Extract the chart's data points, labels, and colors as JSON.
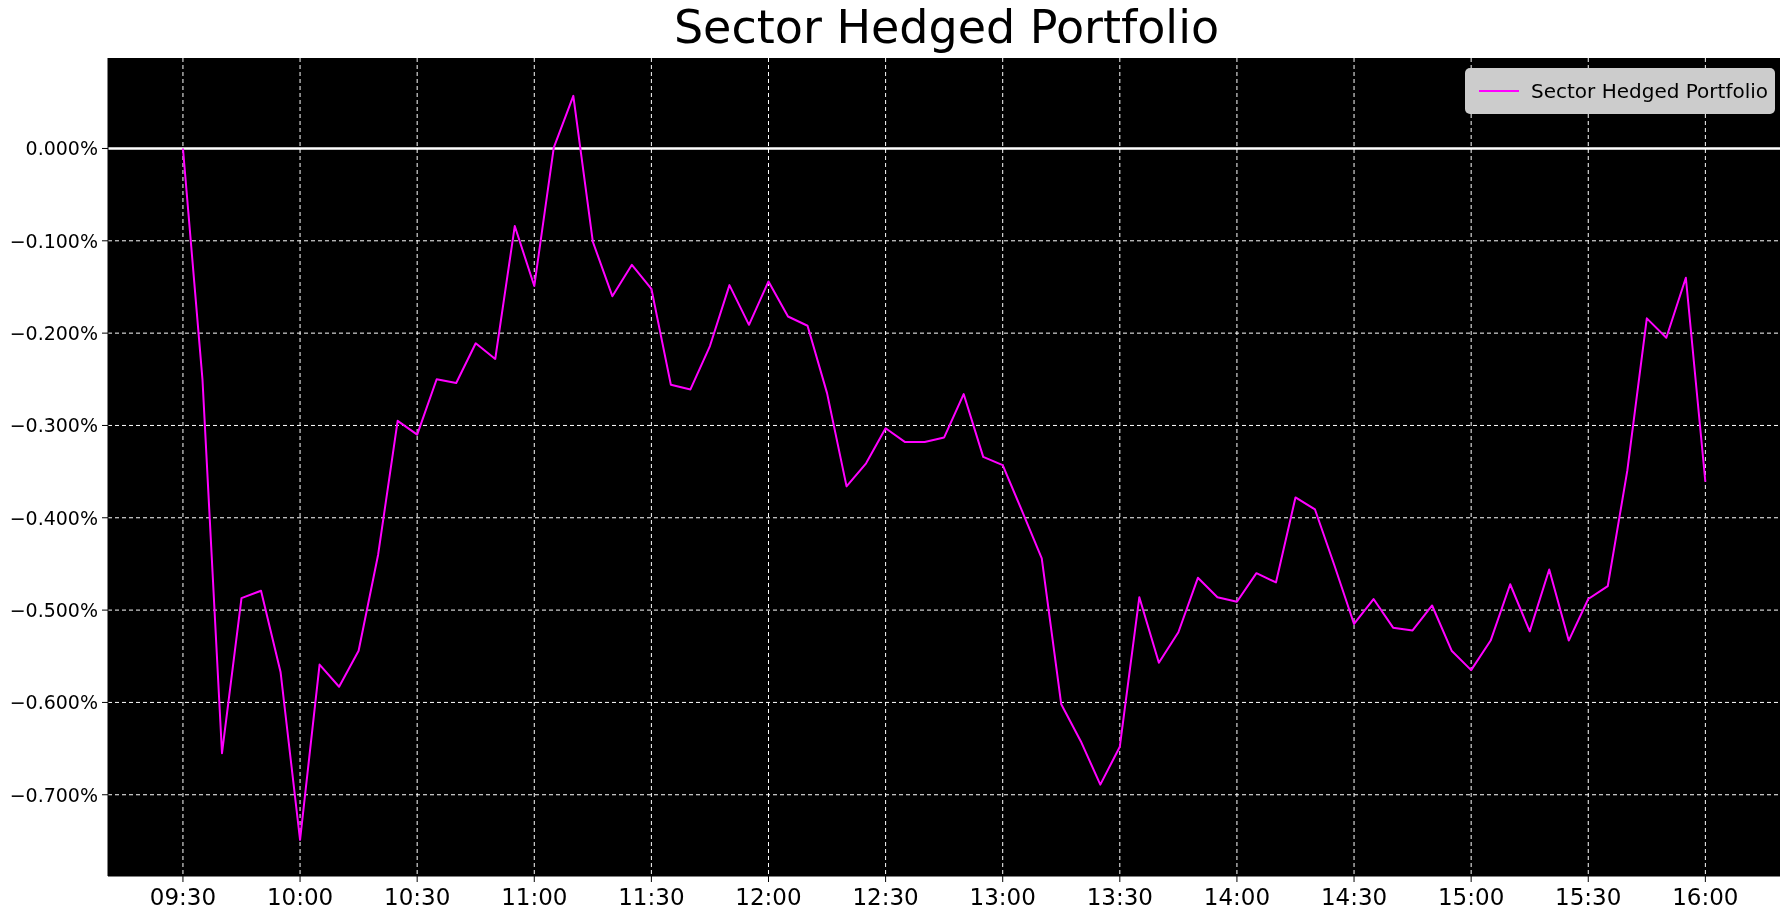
{
  "chart_data": {
    "type": "line",
    "title": "Sector Hedged Portfolio",
    "x": [
      9.5,
      9.5833,
      9.6667,
      9.75,
      9.8333,
      9.9167,
      10,
      10.0833,
      10.1667,
      10.25,
      10.3333,
      10.4167,
      10.5,
      10.5833,
      10.6667,
      10.75,
      10.8333,
      10.9167,
      11,
      11.0833,
      11.1667,
      11.25,
      11.3333,
      11.4167,
      11.5,
      11.5833,
      11.6667,
      11.75,
      11.8333,
      11.9167,
      12,
      12.0833,
      12.1667,
      12.25,
      12.3333,
      12.4167,
      12.5,
      12.5833,
      12.6667,
      12.75,
      12.8333,
      12.9167,
      13,
      13.0833,
      13.1667,
      13.25,
      13.3333,
      13.4167,
      13.5,
      13.5833,
      13.6667,
      13.75,
      13.8333,
      13.9167,
      14,
      14.0833,
      14.1667,
      14.25,
      14.3333,
      14.4167,
      14.5,
      14.5833,
      14.6667,
      14.75,
      14.8333,
      14.9167,
      15,
      15.0833,
      15.1667,
      15.25,
      15.3333,
      15.4167,
      15.5,
      15.5833,
      15.6667,
      15.75,
      15.8333,
      15.9167,
      16
    ],
    "series": [
      {
        "name": "Sector Hedged Portfolio",
        "color": "#ff00ff",
        "values": [
          0,
          -0.25,
          -0.655,
          -0.487,
          -0.479,
          -0.567,
          -0.749,
          -0.559,
          -0.583,
          -0.544,
          -0.44,
          -0.295,
          -0.31,
          -0.25,
          -0.254,
          -0.211,
          -0.228,
          -0.084,
          -0.149,
          0.001,
          0.057,
          -0.101,
          -0.16,
          -0.126,
          -0.152,
          -0.256,
          -0.261,
          -0.214,
          -0.148,
          -0.191,
          -0.144,
          -0.182,
          -0.192,
          -0.265,
          -0.366,
          -0.341,
          -0.303,
          -0.318,
          -0.318,
          -0.313,
          -0.266,
          -0.334,
          -0.343,
          -0.393,
          -0.444,
          -0.602,
          -0.642,
          -0.689,
          -0.648,
          -0.486,
          -0.557,
          -0.524,
          -0.465,
          -0.486,
          -0.491,
          -0.46,
          -0.47,
          -0.378,
          -0.391,
          -0.452,
          -0.515,
          -0.488,
          -0.519,
          -0.522,
          -0.495,
          -0.544,
          -0.565,
          -0.533,
          -0.472,
          -0.523,
          -0.456,
          -0.533,
          -0.488,
          -0.474,
          -0.349,
          -0.184,
          -0.205,
          -0.14,
          -0.361
        ]
      }
    ],
    "xlim": [
      9.18,
      16.34
    ],
    "xticks": [
      {
        "value": 9.5,
        "label": "09:30"
      },
      {
        "value": 10,
        "label": "10:00"
      },
      {
        "value": 10.5,
        "label": "10:30"
      },
      {
        "value": 11,
        "label": "11:00"
      },
      {
        "value": 11.5,
        "label": "11:30"
      },
      {
        "value": 12,
        "label": "12:00"
      },
      {
        "value": 12.5,
        "label": "12:30"
      },
      {
        "value": 13,
        "label": "13:00"
      },
      {
        "value": 13.5,
        "label": "13:30"
      },
      {
        "value": 14,
        "label": "14:00"
      },
      {
        "value": 14.5,
        "label": "14:30"
      },
      {
        "value": 15,
        "label": "15:00"
      },
      {
        "value": 15.5,
        "label": "15:30"
      },
      {
        "value": 16,
        "label": "16:00"
      }
    ],
    "ylim": [
      -0.788,
      0.098
    ],
    "yticks": [
      {
        "value": 0,
        "label": "0.000%"
      },
      {
        "value": -0.1,
        "label": "−0.100%"
      },
      {
        "value": -0.2,
        "label": "−0.200%"
      },
      {
        "value": -0.3,
        "label": "−0.300%"
      },
      {
        "value": -0.4,
        "label": "−0.400%"
      },
      {
        "value": -0.5,
        "label": "−0.500%"
      },
      {
        "value": -0.6,
        "label": "−0.600%"
      },
      {
        "value": -0.7,
        "label": "−0.700%"
      }
    ],
    "ref_lines": [
      {
        "axis": "y",
        "value": 0,
        "color": "#ffffff",
        "line_style": "solid"
      }
    ],
    "grid": true,
    "legend": "top right",
    "line_style": "solid",
    "marker": "none"
  }
}
